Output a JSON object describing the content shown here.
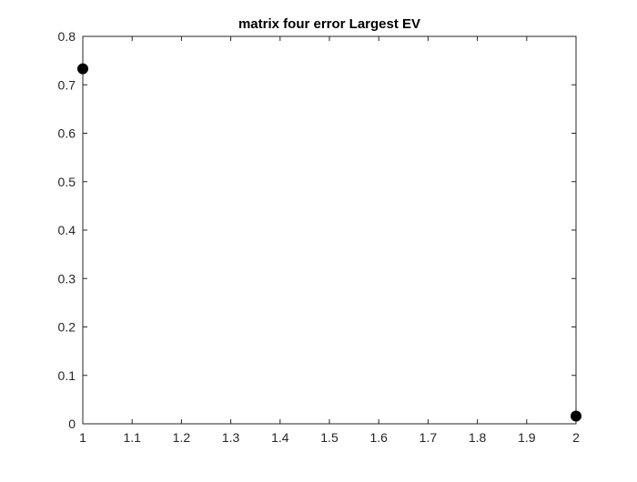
{
  "chart_data": {
    "type": "scatter",
    "title": "matrix four error Largest EV",
    "xlabel": "",
    "ylabel": "",
    "xlim": [
      1,
      2
    ],
    "ylim": [
      0,
      0.8
    ],
    "xticks": [
      "1",
      "1.1",
      "1.2",
      "1.3",
      "1.4",
      "1.5",
      "1.6",
      "1.7",
      "1.8",
      "1.9",
      "2"
    ],
    "yticks": [
      "0",
      "0.1",
      "0.2",
      "0.3",
      "0.4",
      "0.5",
      "0.6",
      "0.7",
      "0.8"
    ],
    "grid": false,
    "series": [
      {
        "x": [
          1,
          2
        ],
        "y": [
          0.733,
          0.016
        ],
        "color": "#000000"
      }
    ]
  }
}
